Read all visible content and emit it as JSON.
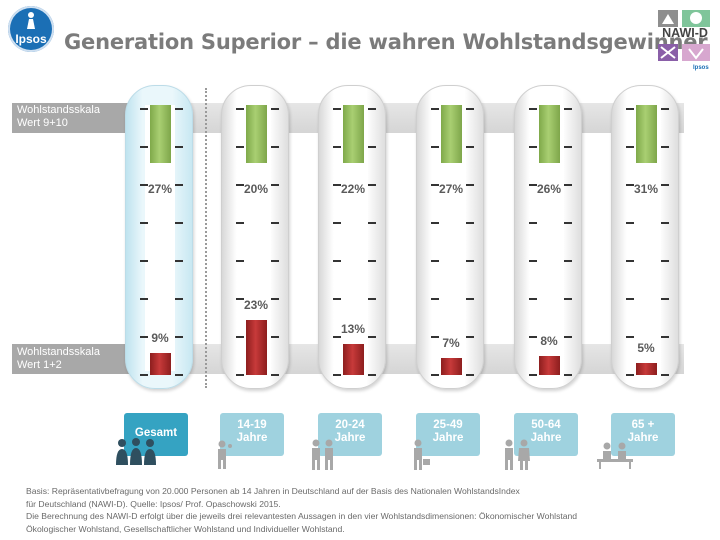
{
  "title": "Generation Superior – die wahren Wohlstandsgewinner",
  "logo_text": "Ipsos",
  "partner_logo": {
    "text": "NAWI-D",
    "subtext": "Ipsos"
  },
  "scale_labels": {
    "top": "Wohlstandsskala\nWert 9+10",
    "bottom": "Wohlstandsskala\nWert 1+2"
  },
  "colors": {
    "high": "#8cb856",
    "low": "#b52e2e",
    "active_button": "#35a3c2",
    "button": "#9fd2df"
  },
  "chart_data": {
    "type": "bar",
    "categories": [
      "Gesamt",
      "14-19\nJahre",
      "20-24\nJahre",
      "25-49\nJahre",
      "50-64\nJahre",
      "65 +\nJahre"
    ],
    "series": [
      {
        "name": "Wohlstandsskala Wert 9+10",
        "values": [
          27,
          20,
          22,
          27,
          26,
          31
        ],
        "labels": [
          "27%",
          "20%",
          "22%",
          "27%",
          "26%",
          "31%"
        ]
      },
      {
        "name": "Wohlstandsskala Wert 1+2",
        "values": [
          9,
          23,
          13,
          7,
          8,
          5
        ],
        "labels": [
          "9%",
          "23%",
          "13%",
          "7%",
          "8%",
          "5%"
        ]
      }
    ],
    "ylim": [
      0,
      100
    ],
    "highlighted_category": "Gesamt"
  },
  "footnote": [
    "Basis: Repräsentativbefragung von 20.000 Personen ab 14 Jahren in Deutschland auf der Basis des Nationalen WohlstandsIndex",
    "für Deutschland (NAWI-D). Quelle: Ipsos/ Prof. Opaschowski  2015.",
    "Die Berechnung des NAWI-D erfolgt  über die jeweils drei relevantesten Aussagen in den vier Wohlstandsdimensionen: Ökonomischer Wohlstand",
    "Ökologischer Wohlstand, Gesellschaftlicher Wohlstand und  Individueller Wohlstand."
  ]
}
